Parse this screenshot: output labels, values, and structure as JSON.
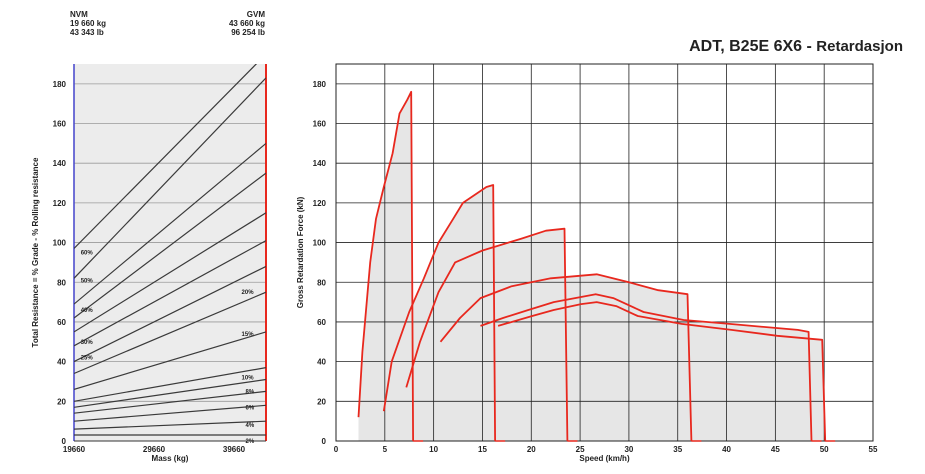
{
  "header": {
    "nvm_label": "NVM",
    "nvm_kg": "19 660 kg",
    "nvm_lb": "43 343 lb",
    "gvm_label": "GVM",
    "gvm_kg": "43 660 kg",
    "gvm_lb": "96 254 lb"
  },
  "title_main": "ADT, B25E 6X6 -",
  "title_suffix": "Retardasjon",
  "chart_data": [
    {
      "type": "line",
      "name": "resistance-nomogram",
      "xlabel": "Mass (kg)",
      "ylabel": "Total Resistance = % Grade - % Rolling resistance",
      "xlim": [
        19660,
        43660
      ],
      "ylim": [
        0,
        190
      ],
      "x_ticks": [
        19660,
        29660,
        39660
      ],
      "y_ticks": [
        0,
        20,
        40,
        60,
        80,
        100,
        120,
        140,
        160,
        180
      ],
      "grid": true,
      "series": [
        {
          "label": "60%",
          "values": [
            [
              19660,
              97
            ],
            [
              43660,
              195
            ]
          ]
        },
        {
          "label": "50%",
          "values": [
            [
              19660,
              82
            ],
            [
              43660,
              183
            ]
          ]
        },
        {
          "label": "40%",
          "values": [
            [
              19660,
              69
            ],
            [
              43660,
              150
            ]
          ]
        },
        {
          "label": "",
          "values": [
            [
              19660,
              62
            ],
            [
              43660,
              135
            ]
          ]
        },
        {
          "label": "",
          "values": [
            [
              19660,
              55
            ],
            [
              43660,
              115
            ]
          ]
        },
        {
          "label": "30%",
          "values": [
            [
              19660,
              48
            ],
            [
              43660,
              101
            ]
          ]
        },
        {
          "label": "25%",
          "values": [
            [
              19660,
              40
            ],
            [
              43660,
              88
            ]
          ]
        },
        {
          "label": "20%",
          "values": [
            [
              19660,
              34
            ],
            [
              43660,
              75
            ]
          ]
        },
        {
          "label": "15%",
          "values": [
            [
              19660,
              26
            ],
            [
              43660,
              55
            ]
          ]
        },
        {
          "label": "",
          "values": [
            [
              19660,
              20
            ],
            [
              43660,
              37
            ]
          ]
        },
        {
          "label": "10%",
          "values": [
            [
              19660,
              17
            ],
            [
              43660,
              31
            ]
          ]
        },
        {
          "label": "8%",
          "values": [
            [
              19660,
              14
            ],
            [
              43660,
              25
            ]
          ]
        },
        {
          "label": "6%",
          "values": [
            [
              19660,
              10
            ],
            [
              43660,
              18
            ]
          ]
        },
        {
          "label": "4%",
          "values": [
            [
              19660,
              6
            ],
            [
              43660,
              10
            ]
          ]
        },
        {
          "label": "2%",
          "values": [
            [
              19660,
              3
            ],
            [
              43660,
              3
            ]
          ]
        }
      ],
      "labeled_points": [
        {
          "label": "60%",
          "x": 20500,
          "y": 95
        },
        {
          "label": "50%",
          "x": 20500,
          "y": 81
        },
        {
          "label": "40%",
          "x": 20500,
          "y": 66
        },
        {
          "label": "30%",
          "x": 20500,
          "y": 50
        },
        {
          "label": "25%",
          "x": 20500,
          "y": 42
        },
        {
          "label": "20%",
          "x": 40600,
          "y": 75
        },
        {
          "label": "15%",
          "x": 40600,
          "y": 54
        },
        {
          "label": "10%",
          "x": 40600,
          "y": 32
        },
        {
          "label": "8%",
          "x": 41100,
          "y": 25
        },
        {
          "label": "6%",
          "x": 41100,
          "y": 17
        },
        {
          "label": "4%",
          "x": 41100,
          "y": 8
        },
        {
          "label": "2%",
          "x": 41100,
          "y": 0
        }
      ]
    },
    {
      "type": "line",
      "name": "retardation-curves",
      "xlabel": "Speed (km/h)",
      "ylabel": "Gross Retardation Force (kN)",
      "xlim": [
        0,
        55
      ],
      "ylim": [
        0,
        190
      ],
      "x_ticks": [
        0,
        5,
        10,
        15,
        20,
        25,
        30,
        35,
        40,
        45,
        50,
        55
      ],
      "y_ticks": [
        0,
        20,
        40,
        60,
        80,
        100,
        120,
        140,
        160,
        180
      ],
      "grid": true,
      "series": [
        {
          "values": [
            [
              2.3,
              12
            ],
            [
              2.7,
              45
            ],
            [
              3.5,
              90
            ],
            [
              4.1,
              112
            ],
            [
              4.9,
              128
            ],
            [
              5.8,
              145
            ],
            [
              6.5,
              165
            ],
            [
              7.3,
              172
            ],
            [
              7.7,
              176
            ],
            [
              7.9,
              0
            ]
          ]
        },
        {
          "values": [
            [
              4.9,
              15
            ],
            [
              5.7,
              40
            ],
            [
              7.5,
              65
            ],
            [
              9.0,
              82
            ],
            [
              10.5,
              100
            ],
            [
              12.0,
              112
            ],
            [
              13.0,
              120
            ],
            [
              15.4,
              128
            ],
            [
              16.1,
              129
            ],
            [
              16.3,
              0
            ]
          ]
        },
        {
          "values": [
            [
              7.2,
              27
            ],
            [
              8.6,
              50
            ],
            [
              10.5,
              75
            ],
            [
              12.2,
              90
            ],
            [
              15.0,
              96
            ],
            [
              19.0,
              102
            ],
            [
              21.5,
              106
            ],
            [
              23.4,
              107
            ],
            [
              23.7,
              0
            ]
          ]
        },
        {
          "values": [
            [
              10.7,
              50
            ],
            [
              12.7,
              62
            ],
            [
              14.8,
              72
            ],
            [
              18.0,
              78
            ],
            [
              22.0,
              82
            ],
            [
              26.7,
              84
            ],
            [
              30.0,
              80
            ],
            [
              33.0,
              76
            ],
            [
              36.0,
              74
            ],
            [
              36.4,
              0
            ]
          ]
        },
        {
          "values": [
            [
              14.8,
              58
            ],
            [
              17.1,
              62
            ],
            [
              19.7,
              66
            ],
            [
              22.3,
              70
            ],
            [
              26.6,
              74
            ],
            [
              28.4,
              72
            ],
            [
              31.5,
              65
            ],
            [
              35.6,
              61
            ],
            [
              40.3,
              59
            ],
            [
              47.3,
              56
            ],
            [
              48.4,
              55
            ],
            [
              48.7,
              0
            ]
          ]
        },
        {
          "values": [
            [
              16.6,
              58
            ],
            [
              20.1,
              63
            ],
            [
              22.3,
              66
            ],
            [
              25.1,
              69
            ],
            [
              26.7,
              70
            ],
            [
              28.7,
              68
            ],
            [
              30.9,
              63
            ],
            [
              35.4,
              59
            ],
            [
              40.5,
              56
            ],
            [
              45.2,
              53
            ],
            [
              49.8,
              51
            ],
            [
              50.1,
              0
            ]
          ]
        }
      ]
    }
  ]
}
